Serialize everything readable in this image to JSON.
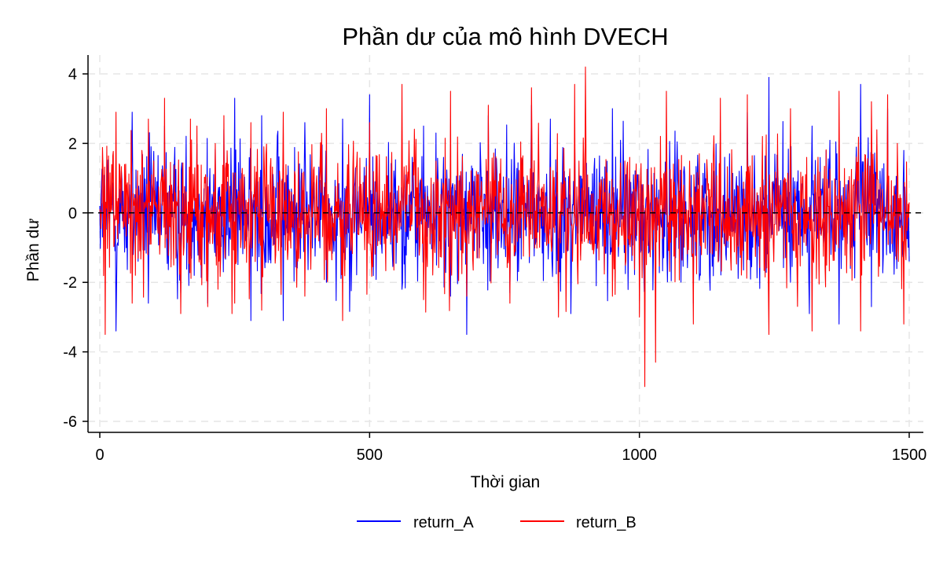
{
  "chart_data": {
    "type": "line",
    "title": "Phần dư của mô hình DVECH",
    "xlabel": "Thời gian",
    "ylabel": "Phần dư",
    "xlim": [
      0,
      1500
    ],
    "ylim": [
      -6,
      4
    ],
    "x_ticks": [
      0,
      500,
      1000,
      1500
    ],
    "y_ticks": [
      -6,
      -4,
      -2,
      0,
      2,
      4
    ],
    "grid": true,
    "reference_line_y": 0,
    "legend_position": "bottom",
    "n_observations": 1500,
    "series": [
      {
        "name": "return_A",
        "color": "#0000ff",
        "x": [
          0,
          10,
          30,
          60,
          90,
          120,
          150,
          180,
          200,
          230,
          250,
          280,
          300,
          340,
          380,
          420,
          450,
          500,
          560,
          600,
          650,
          680,
          720,
          760,
          800,
          850,
          880,
          920,
          950,
          1000,
          1050,
          1100,
          1150,
          1200,
          1240,
          1280,
          1320,
          1370,
          1410,
          1430,
          1460,
          1490,
          1500
        ],
        "values": [
          0.2,
          -1.0,
          -3.4,
          2.9,
          -2.6,
          2.5,
          -2.3,
          2.0,
          -2.6,
          2.4,
          3.3,
          -3.1,
          2.8,
          -3.1,
          2.6,
          -2.0,
          2.7,
          3.4,
          -2.2,
          2.5,
          -2.4,
          -3.5,
          2.8,
          -2.3,
          3.1,
          -2.5,
          2.4,
          -2.1,
          3.0,
          -2.0,
          2.1,
          -2.6,
          2.3,
          2.9,
          3.9,
          -2.0,
          2.5,
          -3.2,
          3.7,
          -2.7,
          3.0,
          1.8,
          -1.4
        ]
      },
      {
        "name": "return_B",
        "color": "#ff0000",
        "x": [
          0,
          10,
          30,
          60,
          90,
          120,
          150,
          180,
          200,
          230,
          250,
          280,
          300,
          340,
          380,
          420,
          450,
          500,
          560,
          600,
          650,
          680,
          720,
          760,
          800,
          850,
          880,
          900,
          950,
          1000,
          1010,
          1030,
          1050,
          1100,
          1150,
          1200,
          1240,
          1280,
          1320,
          1370,
          1410,
          1430,
          1460,
          1490,
          1500
        ],
        "values": [
          0.1,
          -3.5,
          2.9,
          -2.6,
          2.7,
          3.3,
          -2.9,
          2.5,
          -2.7,
          2.8,
          -2.6,
          2.6,
          -2.8,
          2.9,
          -2.4,
          3.0,
          -3.1,
          2.6,
          3.7,
          -2.5,
          3.5,
          -2.4,
          3.1,
          -2.6,
          3.6,
          -3.0,
          3.7,
          4.2,
          -2.4,
          -3.0,
          -5.0,
          -4.3,
          3.5,
          -3.2,
          3.3,
          3.4,
          -3.5,
          3.0,
          -3.4,
          3.5,
          -3.4,
          3.2,
          3.4,
          -3.2,
          0.3
        ]
      }
    ]
  }
}
